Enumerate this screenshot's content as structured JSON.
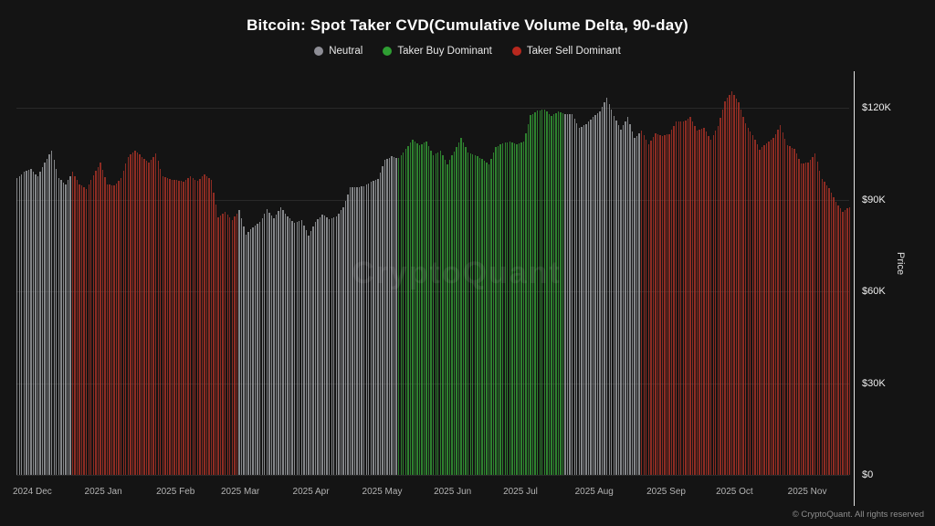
{
  "title": "Bitcoin: Spot Taker CVD(Cumulative Volume Delta, 90-day)",
  "watermark": "CryptoQuant",
  "footer": "© CryptoQuant. All rights reserved",
  "legend": [
    {
      "label": "Neutral",
      "color": "#8e8e96"
    },
    {
      "label": "Taker Buy Dominant",
      "color": "#2f9e33"
    },
    {
      "label": "Taker Sell Dominant",
      "color": "#b8281e"
    }
  ],
  "chart_data": {
    "type": "bar",
    "title": "Bitcoin: Spot Taker CVD(Cumulative Volume Delta, 90-day)",
    "xlabel": "",
    "ylabel": "Price",
    "ylim": [
      0,
      128
    ],
    "grid": "horizontal-faint",
    "legend_position": "top-center",
    "y_ticks": [
      {
        "label": "$120K",
        "value": 120
      },
      {
        "label": "$90K",
        "value": 90
      },
      {
        "label": "$60K",
        "value": 60
      },
      {
        "label": "$30K",
        "value": 30
      },
      {
        "label": "$0",
        "value": 0
      }
    ],
    "x_labels": [
      "2024 Dec",
      "2025 Jan",
      "2025 Feb",
      "2025 Mar",
      "2025 Apr",
      "2025 May",
      "2025 Jun",
      "2025 Jul",
      "2025 Aug",
      "2025 Sep",
      "2025 Oct",
      "2025 Nov"
    ],
    "x_label_day_offsets": [
      0,
      31,
      62,
      90,
      121,
      151,
      182,
      212,
      243,
      274,
      304,
      335
    ],
    "total_days": 360,
    "points_cadence_days": 3,
    "unit": "USD thousands (price in $K)",
    "values": [
      97,
      99,
      100,
      97.5,
      102,
      106,
      97,
      95,
      99,
      95,
      93.5,
      98,
      102,
      95,
      94.5,
      97,
      104,
      106,
      104,
      102,
      105,
      97.7,
      96.6,
      96.5,
      95.8,
      97.5,
      96.1,
      98.3,
      96.3,
      84.3,
      86,
      83.2,
      86.7,
      78.5,
      81,
      82.6,
      86.8,
      83.8,
      87.5,
      84.4,
      82.5,
      83.2,
      78.2,
      82.6,
      85.2,
      83.7,
      84.5,
      87.5,
      93.9,
      94,
      94.3,
      95.9,
      96.8,
      103,
      104.1,
      103.5,
      106.5,
      109.7,
      107.8,
      109,
      104.6,
      105.9,
      101.6,
      105.8,
      110.3,
      105.5,
      104.6,
      103.3,
      101.6,
      107.1,
      108.4,
      108.9,
      108.2,
      108.9,
      117.5,
      119.1,
      119.4,
      117.3,
      118.8,
      117.9,
      118,
      113.5,
      114.6,
      117,
      118.7,
      123.3,
      117.4,
      112.9,
      116.9,
      110.1,
      112.5,
      108.2,
      111.7,
      110.7,
      111.5,
      115.4,
      115.4,
      117.1,
      112.5,
      113.4,
      109.6,
      114,
      122.2,
      125.3,
      121.7,
      114.8,
      111.1,
      106.4,
      108.5,
      110.1,
      114.2,
      107.7,
      106.6,
      101.7,
      102.1,
      105,
      96.8,
      93.6,
      89.3,
      86,
      87.6
    ],
    "regimes": [
      {
        "name": "Neutral",
        "from": 0,
        "to": 7
      },
      {
        "name": "Taker Sell Dominant",
        "from": 8,
        "to": 31
      },
      {
        "name": "Neutral",
        "from": 32,
        "to": 54
      },
      {
        "name": "Taker Buy Dominant",
        "from": 55,
        "to": 78
      },
      {
        "name": "Neutral",
        "from": 79,
        "to": 89
      },
      {
        "name": "Taker Sell Dominant",
        "from": 90,
        "to": 120
      }
    ],
    "bar_colors": {
      "Neutral": "#a4a6ab",
      "Taker Buy Dominant": "#36a037",
      "Taker Sell Dominant": "#b03328"
    }
  }
}
